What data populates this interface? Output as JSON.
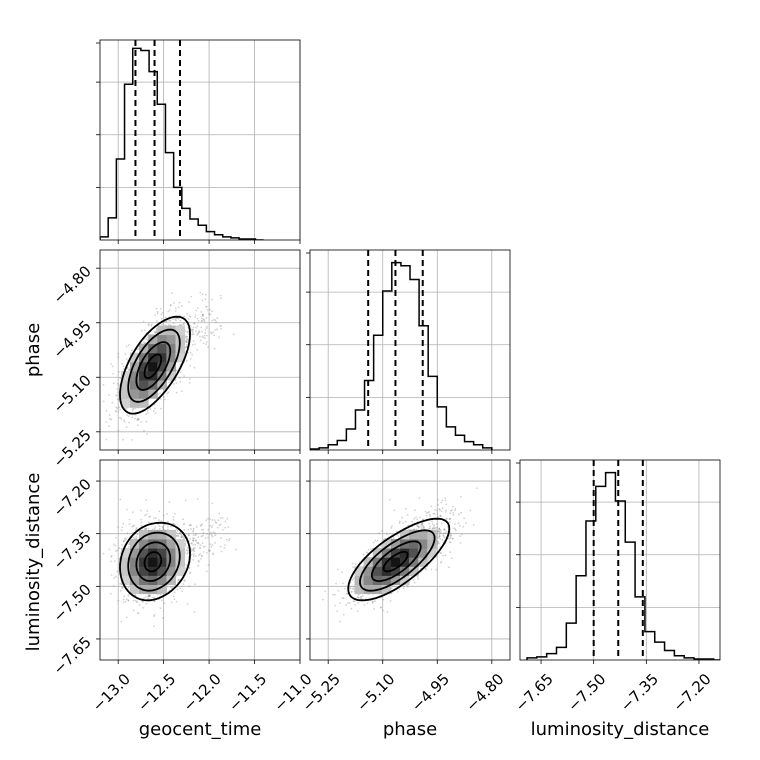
{
  "chart_data": {
    "type": "corner",
    "grid": true,
    "parameters": [
      "geocent_time",
      "phase",
      "luminosity_distance"
    ],
    "axis_labels": {
      "geocent_time": "geocent_time",
      "phase": "phase",
      "luminosity_distance": "luminosity_distance"
    },
    "ranges": {
      "geocent_time": [
        -13.2,
        -11.0
      ],
      "phase": [
        -5.3,
        -4.75
      ],
      "luminosity_distance": [
        -7.71,
        -7.14
      ]
    },
    "ticks": {
      "geocent_time": [
        -13.0,
        -12.5,
        -12.0,
        -11.5,
        -11.0
      ],
      "phase": [
        -5.25,
        -5.1,
        -4.95,
        -4.8
      ],
      "luminosity_distance": [
        -7.65,
        -7.5,
        -7.35,
        -7.2
      ]
    },
    "tick_labels": {
      "geocent_time": [
        "−13.0",
        "−12.5",
        "−12.0",
        "−11.5",
        "−11.0"
      ],
      "phase": [
        "−5.25",
        "−5.10",
        "−4.95",
        "−4.80"
      ],
      "luminosity_distance": [
        "−7.65",
        "−7.50",
        "−7.35",
        "−7.20"
      ]
    },
    "quantiles": {
      "geocent_time": [
        -12.81,
        -12.6,
        -12.32
      ],
      "phase": [
        -5.14,
        -5.065,
        -4.99
      ],
      "luminosity_distance": [
        -7.5,
        -7.43,
        -7.36
      ]
    },
    "histograms": {
      "geocent_time": {
        "edges": [
          -13.2,
          -13.11,
          -13.02,
          -12.93,
          -12.84,
          -12.75,
          -12.66,
          -12.57,
          -12.48,
          -12.39,
          -12.3,
          -12.21,
          -12.12,
          -12.03,
          -11.94,
          -11.85,
          -11.76,
          -11.67,
          -11.58,
          -11.49,
          -11.4
        ],
        "counts": [
          3,
          21,
          77,
          148,
          182,
          180,
          160,
          129,
          83,
          50,
          30,
          20,
          14,
          8,
          5,
          3,
          2,
          1,
          1,
          0
        ],
        "max": 190
      },
      "phase": {
        "edges": [
          -5.3,
          -5.275,
          -5.25,
          -5.225,
          -5.2,
          -5.175,
          -5.15,
          -5.125,
          -5.1,
          -5.075,
          -5.05,
          -5.025,
          -5.0,
          -4.975,
          -4.95,
          -4.925,
          -4.9,
          -4.875,
          -4.85,
          -4.825,
          -4.8
        ],
        "counts": [
          1,
          2,
          5,
          9,
          20,
          38,
          66,
          109,
          151,
          178,
          175,
          162,
          118,
          70,
          41,
          22,
          14,
          8,
          5,
          2
        ],
        "max": 190
      },
      "luminosity_distance": {
        "edges": [
          -7.69,
          -7.662,
          -7.634,
          -7.606,
          -7.578,
          -7.55,
          -7.522,
          -7.494,
          -7.466,
          -7.438,
          -7.41,
          -7.382,
          -7.354,
          -7.326,
          -7.298,
          -7.27,
          -7.242,
          -7.214,
          -7.186,
          -7.158,
          -7.13
        ],
        "counts": [
          2,
          3,
          6,
          12,
          35,
          80,
          132,
          165,
          178,
          151,
          112,
          60,
          27,
          17,
          9,
          4,
          2,
          1,
          1,
          0
        ],
        "max": 190
      }
    },
    "density_2d": [
      {
        "x": "geocent_time",
        "y": "phase",
        "center": [
          -12.62,
          -5.07
        ],
        "sigma": [
          0.18,
          0.065
        ],
        "correlation": 0.6,
        "tail": [
          -12.1,
          -4.96
        ]
      },
      {
        "x": "geocent_time",
        "y": "luminosity_distance",
        "center": [
          -12.62,
          -7.43
        ],
        "sigma": [
          0.18,
          0.055
        ],
        "correlation": 0.15,
        "tail": [
          -12.05,
          -7.36
        ]
      },
      {
        "x": "phase",
        "y": "luminosity_distance",
        "center": [
          -5.065,
          -7.43
        ],
        "sigma": [
          0.065,
          0.055
        ],
        "correlation": 0.7,
        "tail": [
          -4.95,
          -7.32
        ]
      }
    ]
  }
}
